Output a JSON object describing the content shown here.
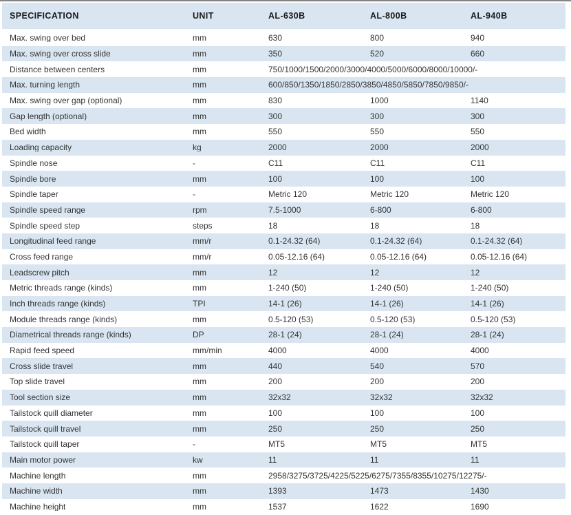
{
  "header": {
    "spec": "SPECIFICATION",
    "unit": "UNIT",
    "models": [
      "AL-630B",
      "AL-800B",
      "AL-940B"
    ]
  },
  "rows": [
    {
      "spec": "Max. swing over bed",
      "unit": "mm",
      "values": [
        "630",
        "800",
        "940"
      ]
    },
    {
      "spec": "Max. swing over cross slide",
      "unit": "mm",
      "values": [
        "350",
        "520",
        "660"
      ]
    },
    {
      "spec": "Distance between centers",
      "unit": "mm",
      "span": "750/1000/1500/2000/3000/4000/5000/6000/8000/10000/-"
    },
    {
      "spec": "Max. turning length",
      "unit": "mm",
      "span": "600/850/1350/1850/2850/3850/4850/5850/7850/9850/-"
    },
    {
      "spec": "Max. swing over gap (optional)",
      "unit": "mm",
      "values": [
        "830",
        "1000",
        "1140"
      ]
    },
    {
      "spec": "Gap length (optional)",
      "unit": "mm",
      "values": [
        "300",
        "300",
        "300"
      ]
    },
    {
      "spec": "Bed width",
      "unit": "mm",
      "values": [
        "550",
        "550",
        "550"
      ]
    },
    {
      "spec": "Loading capacity",
      "unit": "kg",
      "values": [
        "2000",
        "2000",
        "2000"
      ]
    },
    {
      "spec": "Spindle nose",
      "unit": "-",
      "values": [
        "C11",
        "C11",
        "C11"
      ]
    },
    {
      "spec": "Spindle bore",
      "unit": "mm",
      "values": [
        "100",
        "100",
        "100"
      ]
    },
    {
      "spec": "Spindle taper",
      "unit": "-",
      "values": [
        "Metric 120",
        "Metric 120",
        "Metric 120"
      ]
    },
    {
      "spec": "Spindle speed range",
      "unit": "rpm",
      "values": [
        "7.5-1000",
        "6-800",
        "6-800"
      ]
    },
    {
      "spec": "Spindle speed step",
      "unit": "steps",
      "values": [
        "18",
        "18",
        "18"
      ]
    },
    {
      "spec": "Longitudinal feed range",
      "unit": "mm/r",
      "values": [
        "0.1-24.32 (64)",
        "0.1-24.32 (64)",
        "0.1-24.32 (64)"
      ]
    },
    {
      "spec": "Cross feed range",
      "unit": "mm/r",
      "values": [
        "0.05-12.16 (64)",
        "0.05-12.16 (64)",
        "0.05-12.16 (64)"
      ]
    },
    {
      "spec": "Leadscrew pitch",
      "unit": "mm",
      "values": [
        "12",
        "12",
        "12"
      ]
    },
    {
      "spec": "Metric threads range (kinds)",
      "unit": "mm",
      "values": [
        "1-240 (50)",
        "1-240 (50)",
        "1-240 (50)"
      ]
    },
    {
      "spec": "Inch threads range (kinds)",
      "unit": "TPI",
      "values": [
        "14-1 (26)",
        "14-1 (26)",
        "14-1 (26)"
      ]
    },
    {
      "spec": "Module threads range (kinds)",
      "unit": "mm",
      "values": [
        "0.5-120 (53)",
        "0.5-120 (53)",
        "0.5-120 (53)"
      ]
    },
    {
      "spec": "Diametrical threads range (kinds)",
      "unit": "DP",
      "values": [
        "28-1 (24)",
        "28-1 (24)",
        "28-1 (24)"
      ]
    },
    {
      "spec": "Rapid feed speed",
      "unit": "mm/min",
      "values": [
        "4000",
        "4000",
        "4000"
      ]
    },
    {
      "spec": "Cross slide travel",
      "unit": "mm",
      "values": [
        "440",
        "540",
        "570"
      ]
    },
    {
      "spec": "Top slide travel",
      "unit": "mm",
      "values": [
        "200",
        "200",
        "200"
      ]
    },
    {
      "spec": "Tool section size",
      "unit": "mm",
      "values": [
        "32x32",
        "32x32",
        "32x32"
      ]
    },
    {
      "spec": "Tailstock quill diameter",
      "unit": "mm",
      "values": [
        "100",
        "100",
        "100"
      ]
    },
    {
      "spec": "Tailstock quill travel",
      "unit": "mm",
      "values": [
        "250",
        "250",
        "250"
      ]
    },
    {
      "spec": "Tailstock quill taper",
      "unit": "-",
      "values": [
        "MT5",
        "MT5",
        "MT5"
      ]
    },
    {
      "spec": "Main motor power",
      "unit": "kw",
      "values": [
        "11",
        "11",
        "11"
      ]
    },
    {
      "spec": "Machine length",
      "unit": "mm",
      "span": "2958/3275/3725/4225/5225/6275/7355/8355/10275/12275/-"
    },
    {
      "spec": "Machine width",
      "unit": "mm",
      "values": [
        "1393",
        "1473",
        "1430"
      ]
    },
    {
      "spec": "Machine height",
      "unit": "mm",
      "values": [
        "1537",
        "1622",
        "1690"
      ]
    }
  ],
  "colors": {
    "band_blue": "#d9e6f2",
    "top_line": "#848484",
    "text": "#333333",
    "header_text": "#1a1a1a"
  }
}
